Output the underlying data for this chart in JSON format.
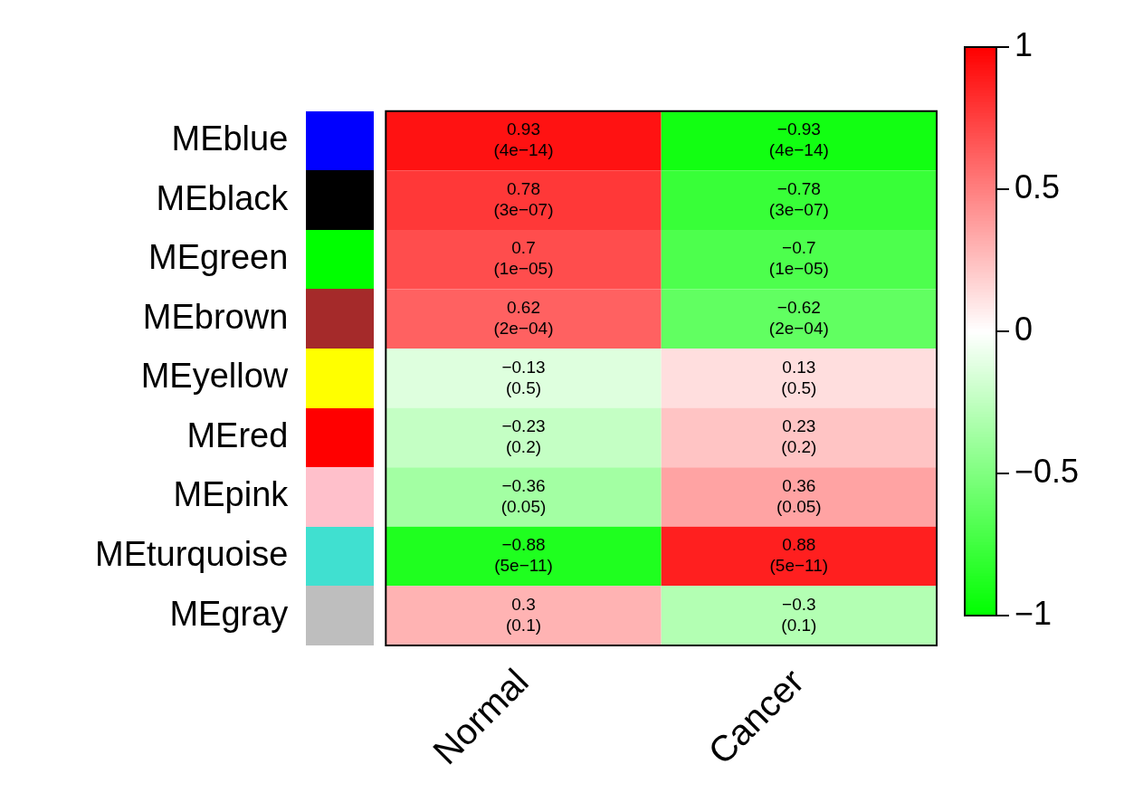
{
  "chart_data": {
    "type": "heatmap",
    "categories": [
      "Normal",
      "Cancer"
    ],
    "y_categories": [
      "MEblue",
      "MEblack",
      "MEgreen",
      "MEbrown",
      "MEyellow",
      "MEred",
      "MEpink",
      "MEturquoise",
      "MEgray"
    ],
    "colors": [
      "#0000ff",
      "#000000",
      "#00ff00",
      "#a52a2a",
      "#ffff00",
      "#ff0000",
      "#ffc0cb",
      "#40e0d0",
      "#bebebe"
    ],
    "cells": [
      [
        0.93,
        -0.93
      ],
      [
        0.78,
        -0.78
      ],
      [
        0.7,
        -0.7
      ],
      [
        0.62,
        -0.62
      ],
      [
        -0.13,
        0.13
      ],
      [
        -0.23,
        0.23
      ],
      [
        -0.36,
        0.36
      ],
      [
        -0.88,
        0.88
      ],
      [
        0.3,
        -0.3
      ]
    ],
    "cell_labels": [
      [
        "0.93\n(4e−14)",
        "−0.93\n(4e−14)"
      ],
      [
        "0.78\n(3e−07)",
        "−0.78\n(3e−07)"
      ],
      [
        "0.7\n(1e−05)",
        "−0.7\n(1e−05)"
      ],
      [
        "0.62\n(2e−04)",
        "−0.62\n(2e−04)"
      ],
      [
        "−0.13\n(0.5)",
        "0.13\n(0.5)"
      ],
      [
        "−0.23\n(0.2)",
        "0.23\n(0.2)"
      ],
      [
        "−0.36\n(0.05)",
        "0.36\n(0.05)"
      ],
      [
        "−0.88\n(5e−11)",
        "0.88\n(5e−11)"
      ],
      [
        "0.3\n(0.1)",
        "−0.3\n(0.1)"
      ]
    ],
    "clim": [
      -1,
      1
    ],
    "cticks": [
      {
        "value": -1,
        "label": "−1"
      },
      {
        "value": -0.5,
        "label": "−0.5"
      },
      0,
      0.5,
      1
    ]
  }
}
